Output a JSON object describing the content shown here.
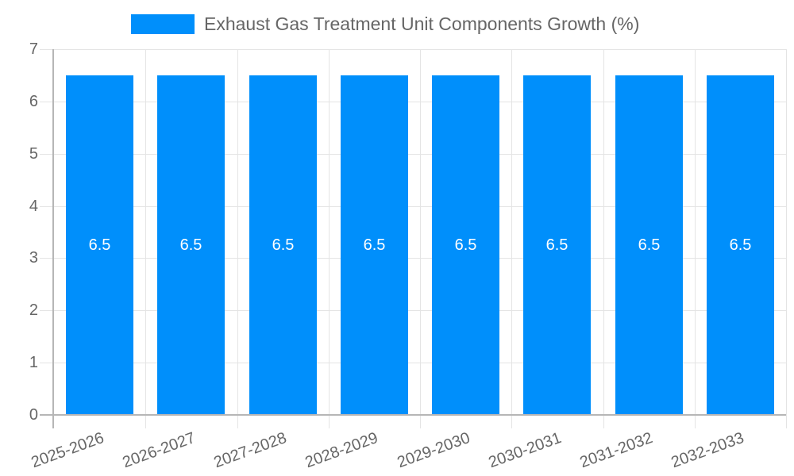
{
  "chart_data": {
    "type": "bar",
    "title": "Exhaust Gas Treatment Unit Components Growth (%)",
    "categories": [
      "2025-2026",
      "2026-2027",
      "2027-2028",
      "2028-2029",
      "2029-2030",
      "2030-2031",
      "2031-2032",
      "2032-2033"
    ],
    "series": [
      {
        "name": "Exhaust Gas Treatment Unit Components Growth (%)",
        "values": [
          6.5,
          6.5,
          6.5,
          6.5,
          6.5,
          6.5,
          6.5,
          6.5
        ]
      }
    ],
    "bar_labels": [
      "6.5",
      "6.5",
      "6.5",
      "6.5",
      "6.5",
      "6.5",
      "6.5",
      "6.5"
    ],
    "ylabel": "",
    "xlabel": "",
    "ylim": [
      0,
      7
    ],
    "y_ticks": [
      "0",
      "1",
      "2",
      "3",
      "4",
      "5",
      "6",
      "7"
    ],
    "grid": true,
    "legend": {
      "position": "top",
      "label": "Exhaust Gas Treatment Unit Components Growth (%)"
    },
    "colors": {
      "bar": "#008FFB",
      "grid": "#e4e4e4",
      "axis": "#b6b6b6",
      "label": "#666666",
      "bar_label": "#ffffff",
      "legend_text": "#666666"
    }
  }
}
